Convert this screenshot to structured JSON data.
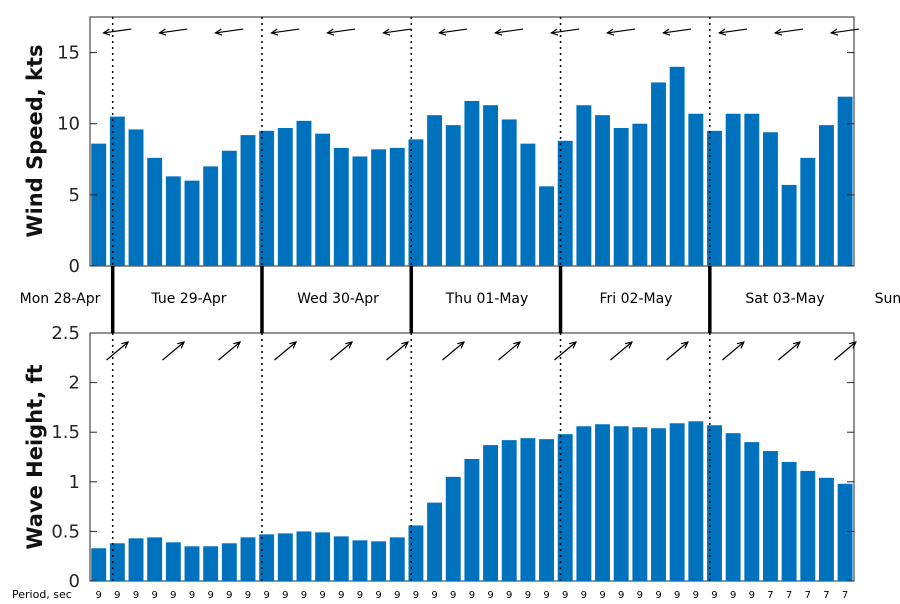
{
  "chart_data": [
    {
      "type": "bar",
      "ylabel": "Wind Speed, kts",
      "ylim": [
        0,
        17.5
      ],
      "yticks": [
        0,
        5,
        10,
        15
      ],
      "grid": false,
      "values": [
        8.6,
        10.5,
        9.6,
        7.6,
        6.3,
        6.0,
        7.0,
        8.1,
        9.2,
        9.5,
        9.7,
        10.2,
        9.3,
        8.3,
        7.7,
        8.2,
        8.3,
        8.9,
        10.6,
        9.9,
        11.6,
        11.3,
        10.3,
        8.6,
        5.6,
        8.8,
        11.3,
        10.6,
        9.7,
        10.0,
        12.9,
        14.0,
        10.7,
        9.5,
        10.7,
        10.7,
        9.4,
        5.7,
        7.6,
        9.9,
        11.9
      ],
      "direction_arrows": "14 arrows, one every third bar, pointing left (east to west) with a slight downward tilt"
    },
    {
      "type": "bar",
      "ylabel": "Wave Height, ft",
      "ylim": [
        0,
        2.5
      ],
      "yticks": [
        "0",
        "0.5",
        "1",
        "1.5",
        "2",
        "2.5"
      ],
      "grid": false,
      "values": [
        0.33,
        0.38,
        0.43,
        0.44,
        0.39,
        0.35,
        0.35,
        0.38,
        0.44,
        0.47,
        0.48,
        0.5,
        0.49,
        0.45,
        0.41,
        0.4,
        0.44,
        0.56,
        0.79,
        1.05,
        1.23,
        1.37,
        1.42,
        1.44,
        1.43,
        1.48,
        1.56,
        1.58,
        1.56,
        1.55,
        1.54,
        1.59,
        1.61,
        1.57,
        1.49,
        1.4,
        1.31,
        1.2,
        1.11,
        1.04,
        0.98
      ],
      "direction_arrows": "14 arrows, one every third bar, pointing up and to the right"
    }
  ],
  "days": [
    "Mon 28-Apr",
    "Tue 29-Apr",
    "Wed 30-Apr",
    "Thu 01-May",
    "Fri 02-May",
    "Sat 03-May",
    "Sun"
  ],
  "period": {
    "label": "Period, sec",
    "values": [
      9,
      9,
      9,
      9,
      9,
      9,
      9,
      9,
      9,
      9,
      9,
      9,
      9,
      9,
      9,
      9,
      9,
      9,
      9,
      9,
      9,
      9,
      9,
      9,
      9,
      9,
      9,
      9,
      9,
      9,
      9,
      9,
      9,
      9,
      9,
      9,
      7,
      7,
      7,
      7,
      7
    ]
  },
  "colors": {
    "bar": "#0072BD",
    "axis": "#262626",
    "divider": "#000000"
  }
}
